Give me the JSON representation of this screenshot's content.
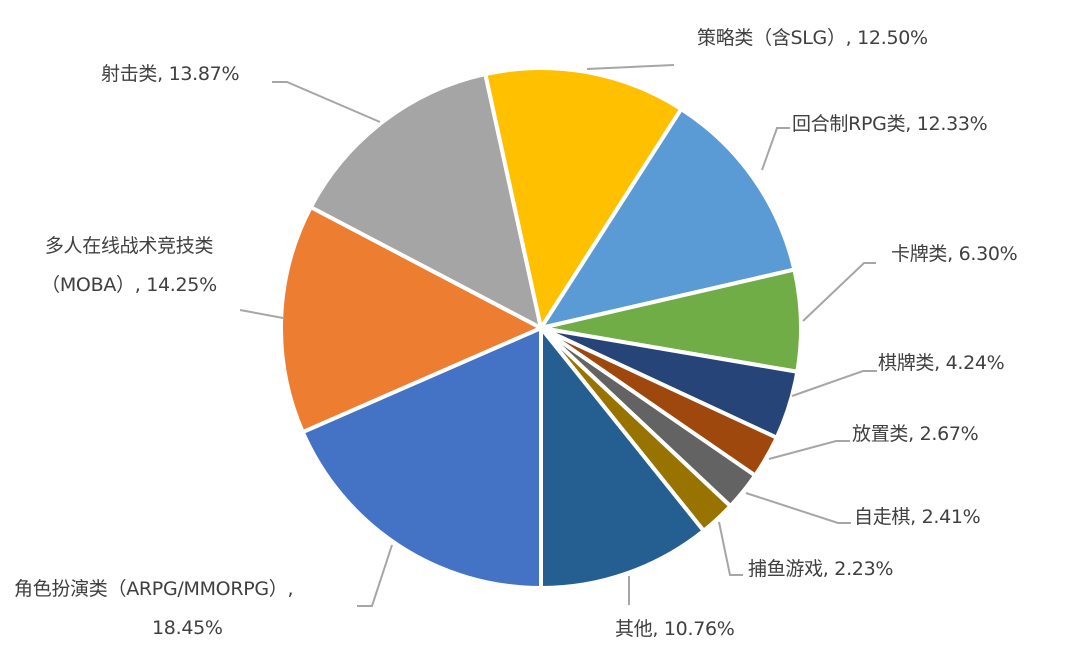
{
  "chart_data": {
    "type": "pie",
    "title": "",
    "start_angle": "6 o'clock, clockwise",
    "center": [
      541,
      328
    ],
    "radius": 260,
    "categories": [
      "角色扮演类（ARPG/MMORPG）",
      "多人在线战术竞技类（MOBA）",
      "射击类",
      "策略类（含SLG）",
      "回合制RPG类",
      "卡牌类",
      "棋牌类",
      "放置类",
      "自走棋",
      "捕鱼游戏",
      "其他"
    ],
    "values": [
      18.45,
      14.25,
      13.87,
      12.5,
      12.33,
      6.3,
      4.24,
      2.67,
      2.41,
      2.23,
      10.76
    ],
    "colors": [
      "#4472C4",
      "#ED7D31",
      "#A5A5A5",
      "#FFC000",
      "#5B9BD5",
      "#70AD47",
      "#264478",
      "#9E480E",
      "#636363",
      "#997300",
      "#255E91"
    ],
    "unit": "%",
    "legend": "none (data labels with leader lines)"
  },
  "labels": {
    "rpg_line1": "角色扮演类（ARPG/MMORPG）,",
    "rpg_line2": "18.45%",
    "moba_line1": "多人在线战术竞技类",
    "moba_line2": "（MOBA）, 14.25%",
    "shooter": "射击类, 13.87%",
    "strategy": "策略类（含SLG）, 12.50%",
    "turn_rpg": "回合制RPG类, 12.33%",
    "card": "卡牌类, 6.30%",
    "board": "棋牌类, 4.24%",
    "idle": "放置类, 2.67%",
    "autochess": "自走棋, 2.41%",
    "fishing": "捕鱼游戏, 2.23%",
    "other": "其他, 10.76%"
  }
}
